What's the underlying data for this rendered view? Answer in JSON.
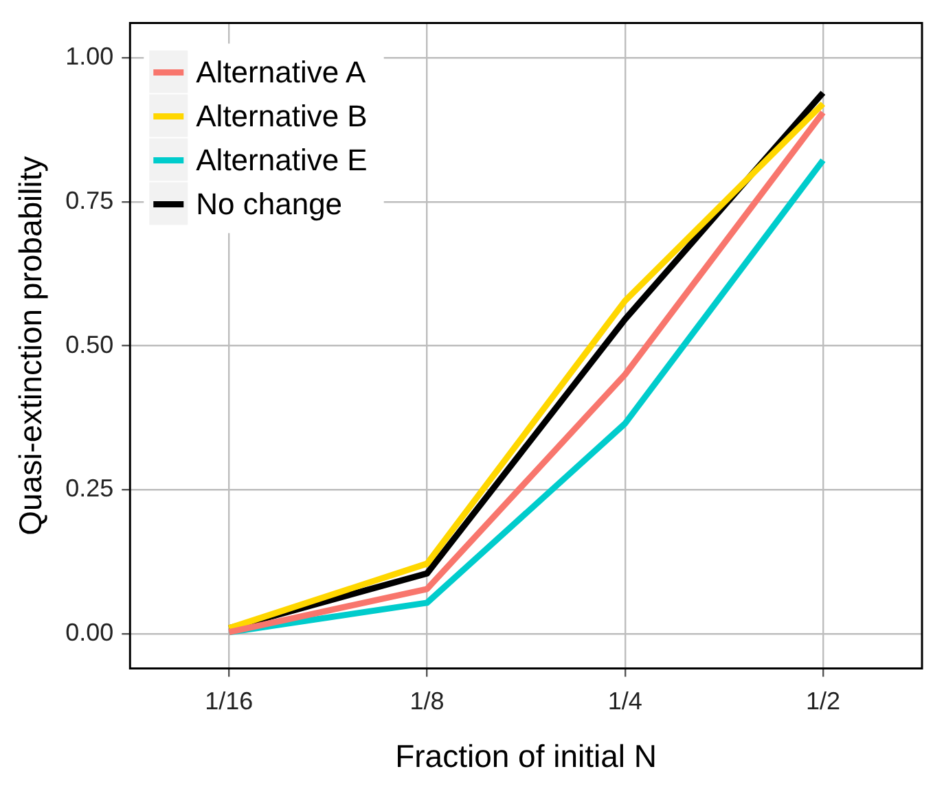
{
  "chart_data": {
    "type": "line",
    "xlabel": "Fraction of initial N",
    "ylabel": "Quasi-extinction probability",
    "categories": [
      "1/16",
      "1/8",
      "1/4",
      "1/2"
    ],
    "series": [
      {
        "name": "Alternative A",
        "color": "#f8766d",
        "values": [
          0.003,
          0.078,
          0.45,
          0.905
        ]
      },
      {
        "name": "Alternative B",
        "color": "#ffd700",
        "values": [
          0.01,
          0.122,
          0.578,
          0.92
        ]
      },
      {
        "name": "Alternative E",
        "color": "#00cccc",
        "values": [
          0.003,
          0.054,
          0.365,
          0.822
        ]
      },
      {
        "name": "No change",
        "color": "#000000",
        "values": [
          0.01,
          0.105,
          0.546,
          0.939
        ]
      }
    ],
    "ylim": [
      -0.06,
      1.06
    ],
    "yticks": [
      {
        "value": 0,
        "label": "0.00"
      },
      {
        "value": 0.25,
        "label": "0.25"
      },
      {
        "value": 0.5,
        "label": "0.50"
      },
      {
        "value": 0.75,
        "label": "0.75"
      },
      {
        "value": 1,
        "label": "1.00"
      }
    ],
    "grid": true,
    "legend": "top left",
    "marker": "none",
    "line_style": "solid"
  }
}
